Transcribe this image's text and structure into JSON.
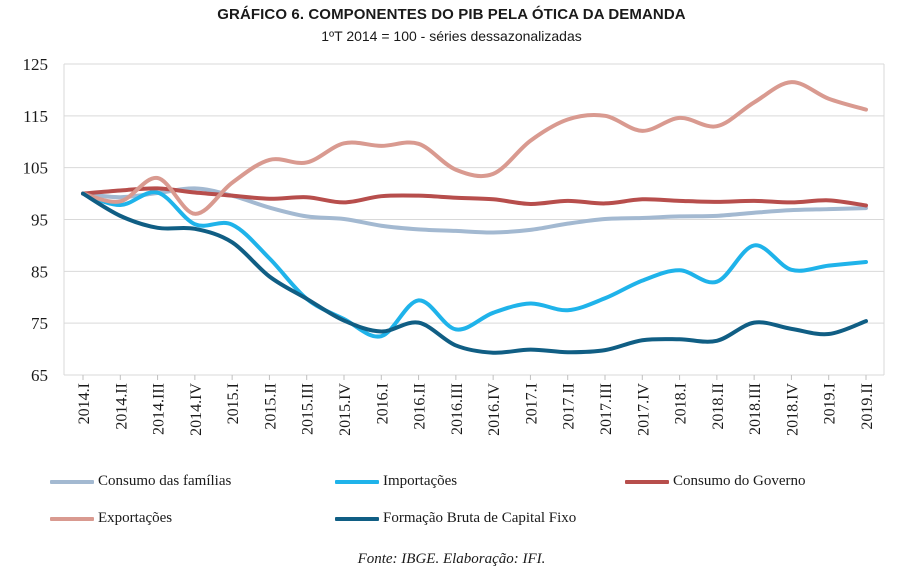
{
  "title": "GRÁFICO 6. COMPONENTES DO PIB PELA ÓTICA DA DEMANDA",
  "subtitle": "1ºT 2014 = 100 - séries dessazonalizadas",
  "source": "Fonte: IBGE. Elaboração: IFI.",
  "chart_data": {
    "type": "line",
    "title": "GRÁFICO 6. COMPONENTES DO PIB PELA ÓTICA DA DEMANDA",
    "subtitle": "1ºT 2014 = 100 - séries dessazonalizadas",
    "categories": [
      "2014.I",
      "2014.II",
      "2014.III",
      "2014.IV",
      "2015.I",
      "2015.II",
      "2015.III",
      "2015.IV",
      "2016.I",
      "2016.II",
      "2016.III",
      "2016.IV",
      "2017.I",
      "2017.II",
      "2017.III",
      "2017.IV",
      "2018.I",
      "2018.II",
      "2018.III",
      "2018.IV",
      "2019.I",
      "2019.II"
    ],
    "ylim": [
      65,
      125
    ],
    "yticks": [
      65,
      75,
      85,
      95,
      105,
      115,
      125
    ],
    "grid": true,
    "legend_position": "bottom",
    "series": [
      {
        "name": "Consumo das famílias",
        "color": "#a3b9d1",
        "values": [
          100,
          99.3,
          100.1,
          101.0,
          99.6,
          97.3,
          95.6,
          95.1,
          93.8,
          93.1,
          92.8,
          92.5,
          93.0,
          94.2,
          95.1,
          95.3,
          95.6,
          95.7,
          96.3,
          96.8,
          97.0,
          97.2
        ]
      },
      {
        "name": "Importações",
        "color": "#1fb3ea",
        "values": [
          100,
          97.8,
          100.2,
          94.1,
          94.0,
          87.5,
          79.7,
          75.8,
          72.5,
          79.4,
          73.8,
          77.0,
          78.8,
          77.5,
          79.8,
          83.2,
          85.2,
          83.0,
          90.0,
          85.3,
          86.1,
          86.8
        ]
      },
      {
        "name": "Consumo do Governo",
        "color": "#b74e4c",
        "values": [
          100,
          100.6,
          101.0,
          100.2,
          99.6,
          99.0,
          99.3,
          98.3,
          99.5,
          99.6,
          99.2,
          98.9,
          98.0,
          98.6,
          98.1,
          98.9,
          98.6,
          98.4,
          98.6,
          98.3,
          98.7,
          97.7
        ]
      },
      {
        "name": "Exportações",
        "color": "#d99a90",
        "values": [
          100,
          98.5,
          103.0,
          96.1,
          102.1,
          106.5,
          106.0,
          109.7,
          109.2,
          109.6,
          104.6,
          103.8,
          110.2,
          114.3,
          115.0,
          112.1,
          114.6,
          113.0,
          117.6,
          121.5,
          118.3,
          116.2
        ]
      },
      {
        "name": "Formação Bruta de Capital Fixo",
        "color": "#105e84",
        "values": [
          100,
          95.7,
          93.4,
          93.2,
          90.6,
          84.0,
          79.7,
          75.5,
          73.4,
          75.1,
          70.7,
          69.3,
          69.9,
          69.4,
          69.8,
          71.7,
          71.9,
          71.6,
          75.1,
          73.9,
          72.9,
          75.4
        ]
      }
    ]
  }
}
